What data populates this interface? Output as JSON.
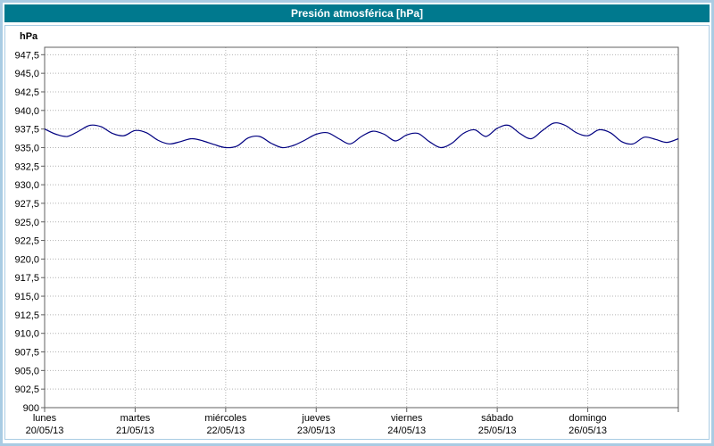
{
  "title": "Presión atmosférica [hPa]",
  "colors": {
    "titlebar_bg": "#00798e",
    "titlebar_text": "#ffffff",
    "outer_border": "#a9cce3",
    "plot_frame": "#606060",
    "grid": "#b4b4b4",
    "line": "#000080",
    "text": "#000000"
  },
  "chart_data": {
    "type": "line",
    "title": "Presión atmosférica [hPa]",
    "ylabel": "hPa",
    "xlabel": "",
    "ylim": [
      900,
      948.5
    ],
    "ytick_step": 2.5,
    "ytick_values": [
      947.5,
      945.0,
      942.5,
      940.0,
      937.5,
      935.0,
      932.5,
      930.0,
      927.5,
      925.0,
      922.5,
      920.0,
      917.5,
      915.0,
      912.5,
      910.0,
      907.5,
      905.0,
      902.5,
      900
    ],
    "ytick_labels": [
      "947,5",
      "945,0",
      "942,5",
      "940,0",
      "937,5",
      "935,0",
      "932,5",
      "930,0",
      "927,5",
      "925,0",
      "922,5",
      "920,0",
      "917,5",
      "915,0",
      "912,5",
      "910,0",
      "907,5",
      "905,0",
      "902,5",
      "900"
    ],
    "x_days": [
      {
        "name": "lunes",
        "date": "20/05/13"
      },
      {
        "name": "martes",
        "date": "21/05/13"
      },
      {
        "name": "miércoles",
        "date": "22/05/13"
      },
      {
        "name": "jueves",
        "date": "23/05/13"
      },
      {
        "name": "viernes",
        "date": "24/05/13"
      },
      {
        "name": "sábado",
        "date": "25/05/13"
      },
      {
        "name": "domingo",
        "date": "26/05/13"
      }
    ],
    "grid": true,
    "legend_position": "none",
    "series": [
      {
        "name": "Presión atmosférica",
        "color": "#000080",
        "x_start_days": 0,
        "x_step_days": 0.125,
        "values": [
          937.5,
          936.8,
          936.5,
          937.2,
          938.0,
          937.8,
          936.9,
          936.6,
          937.3,
          937.0,
          936.0,
          935.5,
          935.8,
          936.2,
          935.9,
          935.4,
          935.0,
          935.2,
          936.3,
          936.5,
          935.6,
          935.0,
          935.3,
          936.0,
          936.8,
          937.0,
          936.2,
          935.5,
          936.5,
          937.2,
          936.8,
          935.9,
          936.7,
          936.9,
          935.8,
          935.0,
          935.6,
          936.9,
          937.4,
          936.5,
          937.6,
          938.0,
          936.9,
          936.2,
          937.3,
          938.3,
          938.0,
          937.0,
          936.6,
          937.4,
          937.0,
          935.8,
          935.5,
          936.4,
          936.1,
          935.7,
          936.2
        ]
      }
    ]
  }
}
